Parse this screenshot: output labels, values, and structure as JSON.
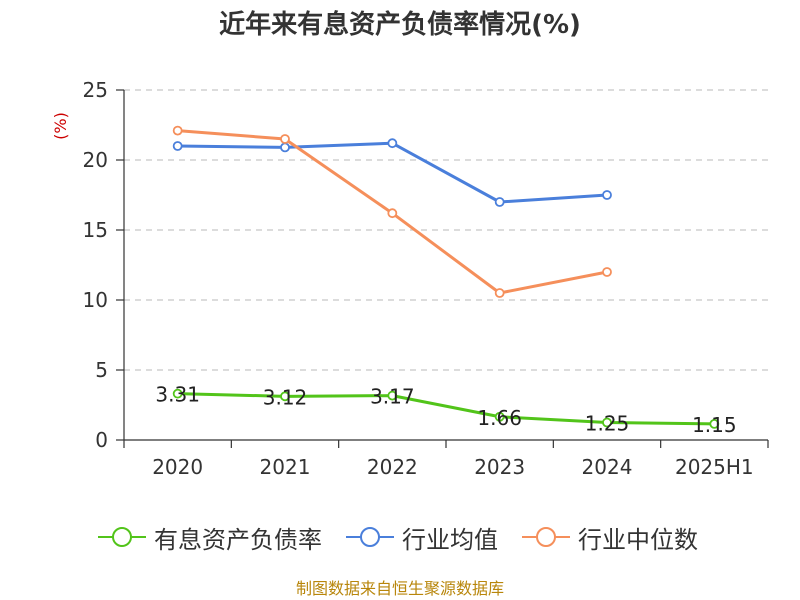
{
  "chart_data": {
    "type": "line",
    "title": "近年来有息资产负债率情况(%)",
    "ylabel": "(%)",
    "categories": [
      "2020",
      "2021",
      "2022",
      "2023",
      "2024",
      "2025H1"
    ],
    "ylim": [
      0,
      25
    ],
    "yticks": [
      0,
      5,
      10,
      15,
      20,
      25
    ],
    "grid": true,
    "legend_position": "bottom",
    "series": [
      {
        "name": "有息资产负债率",
        "color": "#52c41a",
        "values": [
          3.31,
          3.12,
          3.17,
          1.66,
          1.25,
          1.15
        ],
        "labels": [
          "3.31",
          "3.12",
          "3.17",
          "1.66",
          "1.25",
          "1.15"
        ]
      },
      {
        "name": "行业均值",
        "color": "#4a7fdb",
        "values": [
          21.0,
          20.9,
          21.2,
          17.0,
          17.5,
          null
        ]
      },
      {
        "name": "行业中位数",
        "color": "#f58f5b",
        "values": [
          22.1,
          21.5,
          16.2,
          10.5,
          12.0,
          null
        ]
      }
    ]
  },
  "source": "制图数据来自恒生聚源数据库"
}
